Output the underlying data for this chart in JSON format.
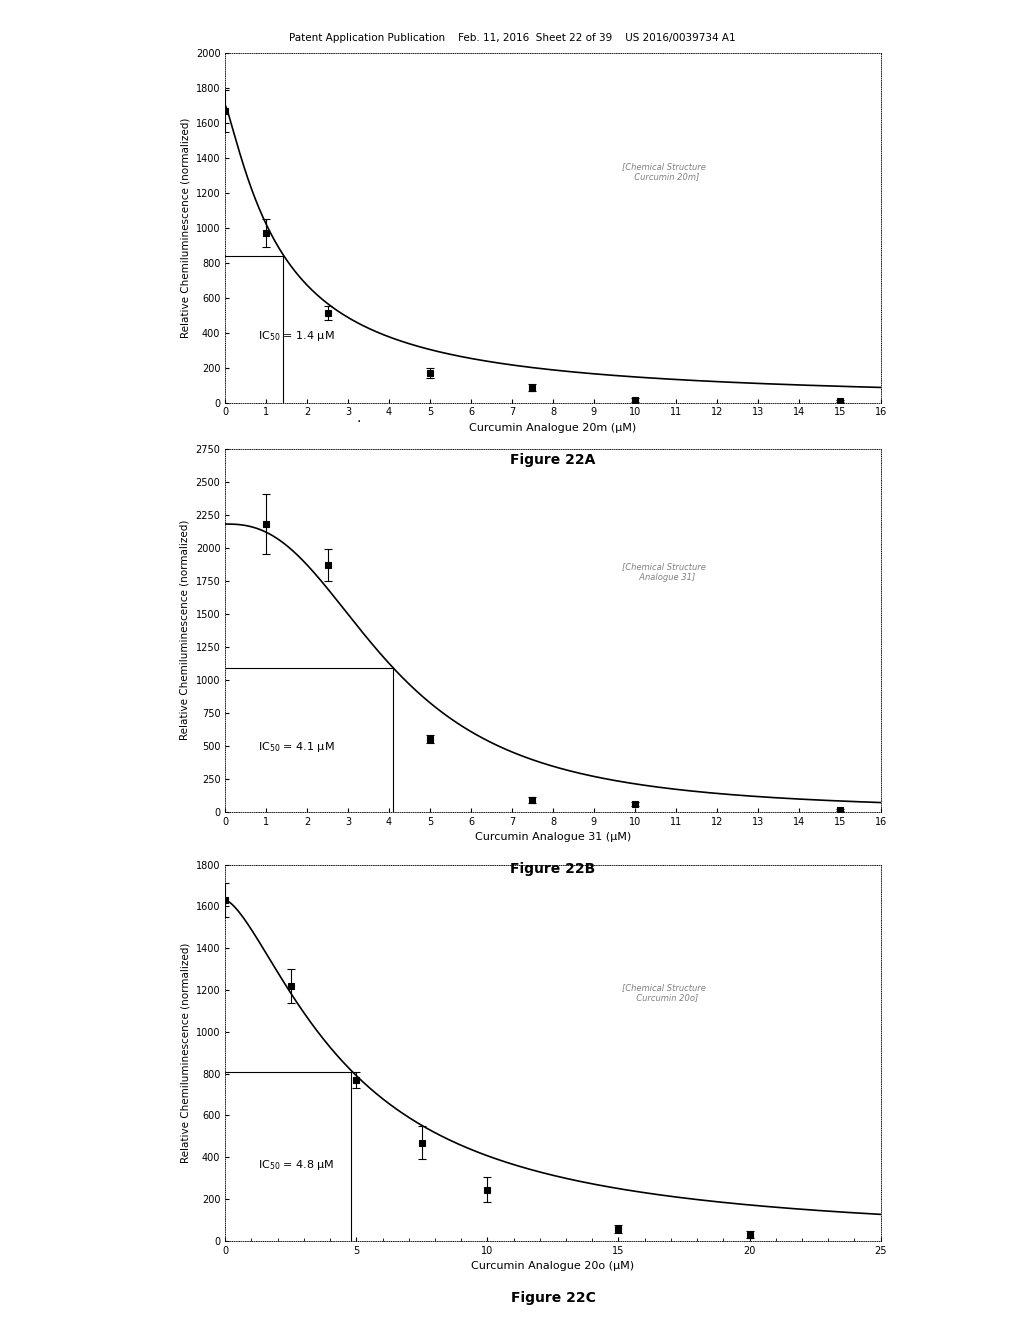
{
  "fig22A": {
    "title": "Figure 22A",
    "xlabel": "Curcumin Analogue 20m (μM)",
    "ylabel": "Relative Chemiluminescence (normalized)",
    "ic50_label": "IC$_{50}$ = 1.4 μM",
    "ic50_value": 1.4,
    "ic50_half": 840,
    "ylim": [
      0,
      2000
    ],
    "xlim": [
      0,
      16
    ],
    "yticks": [
      0,
      200,
      400,
      600,
      800,
      1000,
      1200,
      1400,
      1600,
      1800,
      2000
    ],
    "xticks": [
      0,
      1,
      2,
      3,
      4,
      5,
      6,
      7,
      8,
      9,
      10,
      11,
      12,
      13,
      14,
      15,
      16
    ],
    "data_x": [
      0,
      1,
      2.5,
      5,
      7.5,
      10,
      15
    ],
    "data_y": [
      1670,
      970,
      510,
      170,
      85,
      15,
      10
    ],
    "data_yerr": [
      120,
      80,
      40,
      30,
      20,
      10,
      5
    ],
    "curve_params": {
      "top": 1700,
      "ic50": 1.4,
      "hill": 1.2
    }
  },
  "fig22B": {
    "title": "Figure 22B",
    "xlabel": "Curcumin Analogue 31 (μM)",
    "ylabel": "Relative Chemiluminescence (normalized)",
    "ic50_label": "IC$_{50}$ = 4.1 μM",
    "ic50_value": 4.1,
    "ic50_half": 1090,
    "ylim": [
      0,
      2750
    ],
    "xlim": [
      0,
      16
    ],
    "yticks": [
      0,
      250,
      500,
      750,
      1000,
      1250,
      1500,
      1750,
      2000,
      2250,
      2500,
      2750
    ],
    "xticks": [
      0,
      1,
      2,
      3,
      4,
      5,
      6,
      7,
      8,
      9,
      10,
      11,
      12,
      13,
      14,
      15,
      16
    ],
    "data_x": [
      1,
      2.5,
      5,
      7.5,
      10,
      15
    ],
    "data_y": [
      2180,
      1870,
      555,
      90,
      60,
      15
    ],
    "data_yerr": [
      230,
      120,
      30,
      20,
      15,
      8
    ],
    "curve_params": {
      "top": 2180,
      "ic50": 4.1,
      "hill": 2.5
    }
  },
  "fig22C": {
    "title": "Figure 22C",
    "xlabel": "Curcumin Analogue 20o (μM)",
    "ylabel": "Relative Chemiluminescence (normalized)",
    "ic50_label": "IC$_{50}$ = 4.8 μM",
    "ic50_value": 4.8,
    "ic50_half": 810,
    "ylim": [
      0,
      1800
    ],
    "xlim": [
      0,
      25
    ],
    "yticks": [
      0,
      200,
      400,
      600,
      800,
      1000,
      1200,
      1400,
      1600,
      1800
    ],
    "xticks": [
      0,
      5,
      10,
      15,
      20,
      25
    ],
    "data_x": [
      0,
      2.5,
      5,
      7.5,
      10,
      15,
      20
    ],
    "data_y": [
      1630,
      1220,
      770,
      470,
      245,
      55,
      30
    ],
    "data_yerr": [
      80,
      80,
      40,
      80,
      60,
      20,
      15
    ],
    "curve_params": {
      "top": 1630,
      "ic50": 4.8,
      "hill": 1.5
    }
  },
  "header_text": "Patent Application Publication    Feb. 11, 2016  Sheet 22 of 39    US 2016/0039734 A1",
  "bg_color": "#ffffff",
  "text_color": "#000000"
}
